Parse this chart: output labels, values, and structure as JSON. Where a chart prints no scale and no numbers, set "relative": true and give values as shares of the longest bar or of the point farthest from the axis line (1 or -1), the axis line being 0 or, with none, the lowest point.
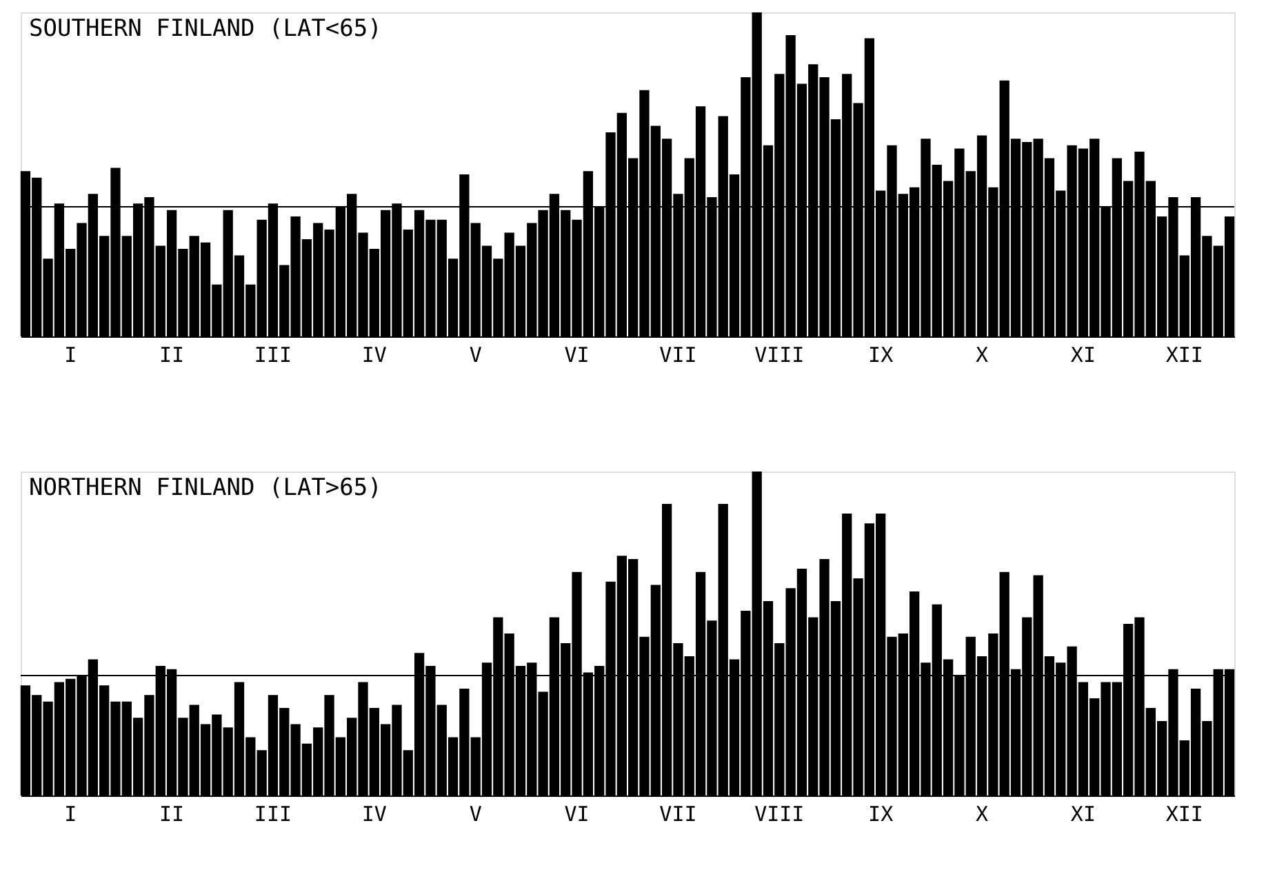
{
  "chart_data": [
    {
      "type": "bar",
      "title": "SOUTHERN FINLAND (LAT<65)",
      "relative": true,
      "color": "#000000",
      "tick_labels": "x",
      "categories": [
        null,
        null,
        null,
        null,
        "I",
        null,
        null,
        null,
        null,
        null,
        null,
        null,
        null,
        "II",
        null,
        null,
        null,
        null,
        null,
        null,
        null,
        null,
        "III",
        null,
        null,
        null,
        null,
        null,
        null,
        null,
        null,
        "IV",
        null,
        null,
        null,
        null,
        null,
        null,
        null,
        null,
        "V",
        null,
        null,
        null,
        null,
        null,
        null,
        null,
        null,
        "VI",
        null,
        null,
        null,
        null,
        null,
        null,
        null,
        null,
        "VII",
        null,
        null,
        null,
        null,
        null,
        null,
        null,
        null,
        "VIII",
        null,
        null,
        null,
        null,
        null,
        null,
        null,
        null,
        "IX",
        null,
        null,
        null,
        null,
        null,
        null,
        null,
        null,
        "X",
        null,
        null,
        null,
        null,
        null,
        null,
        null,
        null,
        "XI",
        null,
        null,
        null,
        null,
        null,
        null,
        null,
        null,
        "XII",
        null,
        null,
        null,
        null
      ],
      "ref_lines": [
        {
          "axis": "y",
          "value": 0.4,
          "color": "#000000"
        }
      ],
      "values": [
        0.51,
        0.49,
        0.24,
        0.41,
        0.27,
        0.35,
        0.44,
        0.31,
        0.52,
        0.31,
        0.41,
        0.43,
        0.28,
        0.39,
        0.27,
        0.31,
        0.29,
        0.16,
        0.39,
        0.25,
        0.16,
        0.36,
        0.41,
        0.22,
        0.37,
        0.3,
        0.35,
        0.33,
        0.4,
        0.44,
        0.32,
        0.27,
        0.39,
        0.41,
        0.33,
        0.39,
        0.36,
        0.36,
        0.24,
        0.5,
        0.35,
        0.28,
        0.24,
        0.32,
        0.28,
        0.35,
        0.39,
        0.44,
        0.39,
        0.36,
        0.51,
        0.4,
        0.63,
        0.69,
        0.55,
        0.76,
        0.65,
        0.61,
        0.44,
        0.55,
        0.71,
        0.43,
        0.68,
        0.5,
        0.8,
        1.0,
        0.59,
        0.81,
        0.93,
        0.78,
        0.84,
        0.8,
        0.67,
        0.81,
        0.72,
        0.92,
        0.45,
        0.59,
        0.44,
        0.46,
        0.61,
        0.53,
        0.48,
        0.58,
        0.51,
        0.62,
        0.46,
        0.79,
        0.61,
        0.6,
        0.61,
        0.55,
        0.45,
        0.59,
        0.58,
        0.61,
        0.4,
        0.55,
        0.48,
        0.57,
        0.48,
        0.37,
        0.43,
        0.25,
        0.43,
        0.31,
        0.28,
        0.37
      ]
    },
    {
      "type": "bar",
      "title": "NORTHERN FINLAND (LAT>65)",
      "relative": true,
      "color": "#000000",
      "tick_labels": "x",
      "categories": [
        null,
        null,
        null,
        null,
        "I",
        null,
        null,
        null,
        null,
        null,
        null,
        null,
        null,
        "II",
        null,
        null,
        null,
        null,
        null,
        null,
        null,
        null,
        "III",
        null,
        null,
        null,
        null,
        null,
        null,
        null,
        null,
        "IV",
        null,
        null,
        null,
        null,
        null,
        null,
        null,
        null,
        "V",
        null,
        null,
        null,
        null,
        null,
        null,
        null,
        null,
        "VI",
        null,
        null,
        null,
        null,
        null,
        null,
        null,
        null,
        "VII",
        null,
        null,
        null,
        null,
        null,
        null,
        null,
        null,
        "VIII",
        null,
        null,
        null,
        null,
        null,
        null,
        null,
        null,
        "IX",
        null,
        null,
        null,
        null,
        null,
        null,
        null,
        null,
        "X",
        null,
        null,
        null,
        null,
        null,
        null,
        null,
        null,
        "XI",
        null,
        null,
        null,
        null,
        null,
        null,
        null,
        null,
        "XII",
        null,
        null,
        null,
        null
      ],
      "ref_lines": [
        {
          "axis": "y",
          "value": 0.37,
          "color": "#000000"
        }
      ],
      "values": [
        0.34,
        0.31,
        0.29,
        0.35,
        0.36,
        0.37,
        0.42,
        0.34,
        0.29,
        0.29,
        0.24,
        0.31,
        0.4,
        0.39,
        0.24,
        0.28,
        0.22,
        0.25,
        0.21,
        0.35,
        0.18,
        0.14,
        0.31,
        0.27,
        0.22,
        0.16,
        0.21,
        0.31,
        0.18,
        0.24,
        0.35,
        0.27,
        0.22,
        0.28,
        0.14,
        0.44,
        0.4,
        0.28,
        0.18,
        0.33,
        0.18,
        0.41,
        0.55,
        0.5,
        0.4,
        0.41,
        0.32,
        0.55,
        0.47,
        0.69,
        0.38,
        0.4,
        0.66,
        0.74,
        0.73,
        0.49,
        0.65,
        0.9,
        0.47,
        0.43,
        0.69,
        0.54,
        0.9,
        0.42,
        0.57,
        1.0,
        0.6,
        0.47,
        0.64,
        0.7,
        0.55,
        0.73,
        0.6,
        0.87,
        0.67,
        0.84,
        0.87,
        0.49,
        0.5,
        0.63,
        0.41,
        0.59,
        0.42,
        0.37,
        0.49,
        0.43,
        0.5,
        0.69,
        0.39,
        0.55,
        0.68,
        0.43,
        0.41,
        0.46,
        0.35,
        0.3,
        0.35,
        0.35,
        0.53,
        0.55,
        0.27,
        0.23,
        0.39,
        0.17,
        0.33,
        0.23,
        0.39,
        0.39
      ]
    }
  ]
}
